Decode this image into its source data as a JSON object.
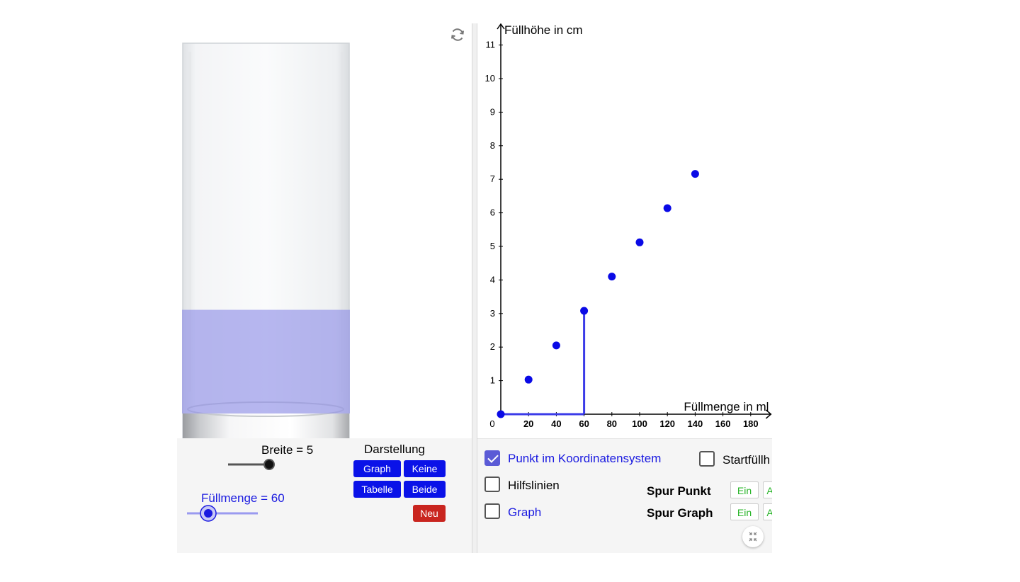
{
  "left": {
    "breite_label": "Breite = 5",
    "fuellmenge_label": "Füllmenge = 60",
    "fuellmenge_value": 60,
    "fuellmenge_max": 200,
    "breite_value": 5,
    "darstellung_label": "Darstellung",
    "buttons": {
      "graph": "Graph",
      "keine": "Keine",
      "tabelle": "Tabelle",
      "beide": "Beide",
      "neu": "Neu"
    },
    "fill_fraction": 0.28
  },
  "right": {
    "checkboxes": {
      "punkt": {
        "label": "Punkt im Koordinatensystem",
        "checked": true
      },
      "startfuell": {
        "label": "Startfüllh",
        "checked": false
      },
      "hilfslinien": {
        "label": "Hilfslinien",
        "checked": false
      },
      "graph": {
        "label": "Graph",
        "checked": false
      }
    },
    "spur_punkt": "Spur Punkt",
    "spur_graph": "Spur Graph",
    "ein": "Ein",
    "aus_partial": "A"
  },
  "chart_data": {
    "type": "scatter",
    "title": "",
    "xlabel": "Füllmenge in ml",
    "ylabel": "Füllhöhe in cm",
    "xlim": [
      0,
      195
    ],
    "ylim": [
      0,
      11.5
    ],
    "xticks": [
      20,
      40,
      60,
      80,
      100,
      120,
      140,
      160,
      180
    ],
    "yticks": [
      1,
      2,
      3,
      4,
      5,
      6,
      7,
      8,
      9,
      10,
      11
    ],
    "origin_label": "0",
    "x": [
      0,
      20,
      40,
      60,
      80,
      100,
      120,
      140
    ],
    "y": [
      0,
      1.03,
      2.05,
      3.08,
      4.1,
      5.12,
      6.14,
      7.16
    ],
    "current_point": {
      "x": 60,
      "y": 3.08
    }
  },
  "colors": {
    "accent": "#0a12e8",
    "point": "#0a0ae6",
    "water": "#8c8ce6",
    "neu": "#c9251f",
    "ein": "#28b428"
  }
}
